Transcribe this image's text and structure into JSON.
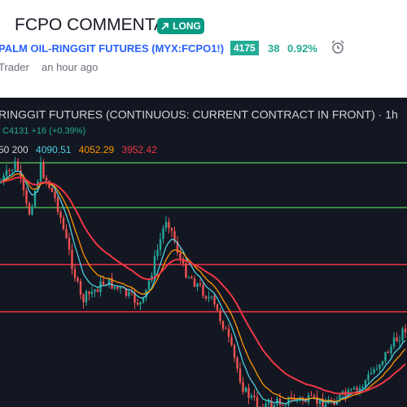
{
  "header": {
    "title": "FCPO COMMENTARY",
    "badge": "LONG",
    "symbol_name": "PALM OIL-RINGGIT FUTURES",
    "symbol_code": "(MYX:FCPO1!)",
    "price": "4175",
    "change": "38",
    "change_pct": "0.92%",
    "author": "Trader",
    "time": "an hour ago"
  },
  "chart": {
    "title": "RINGGIT FUTURES (CONTINUOUS: CURRENT CONTRACT IN FRONT) · 1h",
    "quote": "C4131 +16 (+0.39%)",
    "ma_periods": "50 200",
    "ma_values": [
      "4090.51",
      "4052.29",
      "3952.42"
    ]
  }
}
